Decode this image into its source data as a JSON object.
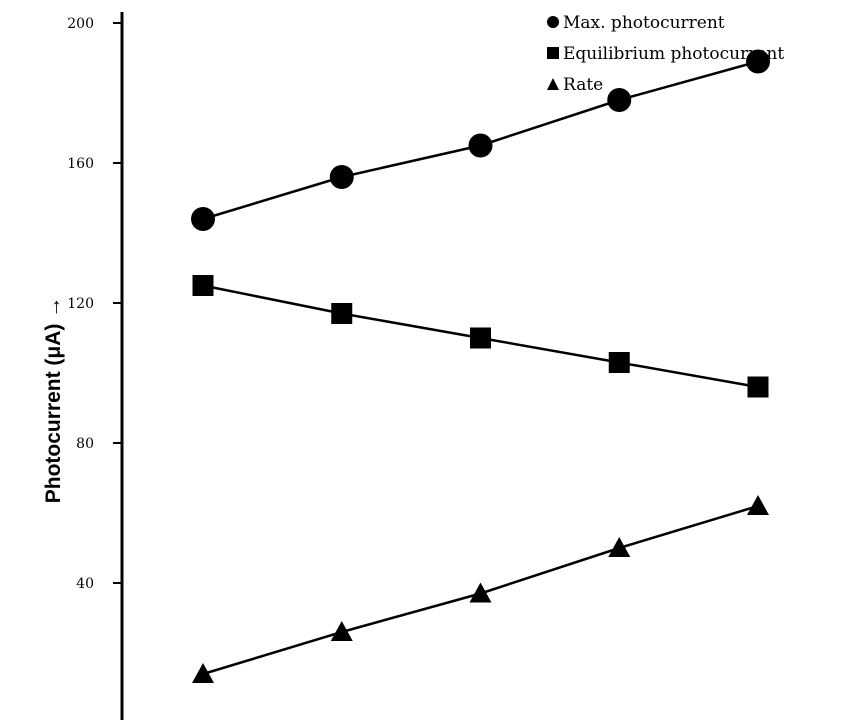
{
  "chart_data": {
    "type": "line",
    "title": "",
    "xlabel": "",
    "ylabel": "Photocurrent (μA) →",
    "ylim": [
      -3,
      222
    ],
    "yticks": [
      40,
      80,
      120,
      160,
      200
    ],
    "x": [
      1,
      2,
      3,
      4,
      5
    ],
    "xlim": [
      0.4,
      5.8
    ],
    "grid": false,
    "legend_position": "top-right",
    "series": [
      {
        "name": "Max. photocurrent",
        "marker": "circle",
        "values": [
          144,
          156,
          165,
          178,
          189
        ]
      },
      {
        "name": "Equilibrium photocurrent",
        "marker": "square",
        "values": [
          125,
          117,
          110,
          103,
          96
        ]
      },
      {
        "name": "Rate",
        "marker": "triangle",
        "values": [
          14,
          26,
          37,
          50,
          62
        ]
      }
    ],
    "colors": {
      "line": "#000000",
      "marker": "#000000"
    }
  }
}
